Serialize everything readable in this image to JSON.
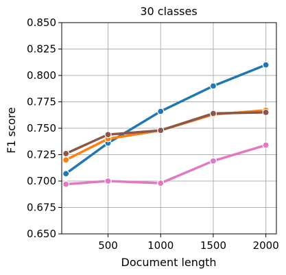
{
  "chart_data": {
    "type": "line",
    "title": "30 classes",
    "xlabel": "Document length",
    "ylabel": "F1 score",
    "xlim": [
      60,
      2100
    ],
    "ylim": [
      0.65,
      0.85
    ],
    "x": [
      100,
      500,
      1000,
      1500,
      2000
    ],
    "xticks": [
      500,
      1000,
      1500,
      2000
    ],
    "xtick_labels": [
      "500",
      "1000",
      "1500",
      "2000"
    ],
    "yticks": [
      0.65,
      0.675,
      0.7,
      0.725,
      0.75,
      0.775,
      0.8,
      0.825,
      0.85
    ],
    "ytick_labels": [
      "0.650",
      "0.675",
      "0.700",
      "0.725",
      "0.750",
      "0.775",
      "0.800",
      "0.825",
      "0.850"
    ],
    "grid": true,
    "legend": false,
    "series": [
      {
        "color": "#1f77b4",
        "values": [
          0.707,
          0.736,
          0.766,
          0.79,
          0.81
        ]
      },
      {
        "color": "#ff7f0e",
        "values": [
          0.72,
          0.74,
          0.748,
          0.763,
          0.767
        ]
      },
      {
        "color": "#8c564b",
        "values": [
          0.726,
          0.744,
          0.748,
          0.764,
          0.765
        ]
      },
      {
        "color": "#e377c2",
        "values": [
          0.697,
          0.7,
          0.698,
          0.719,
          0.734
        ]
      }
    ]
  }
}
